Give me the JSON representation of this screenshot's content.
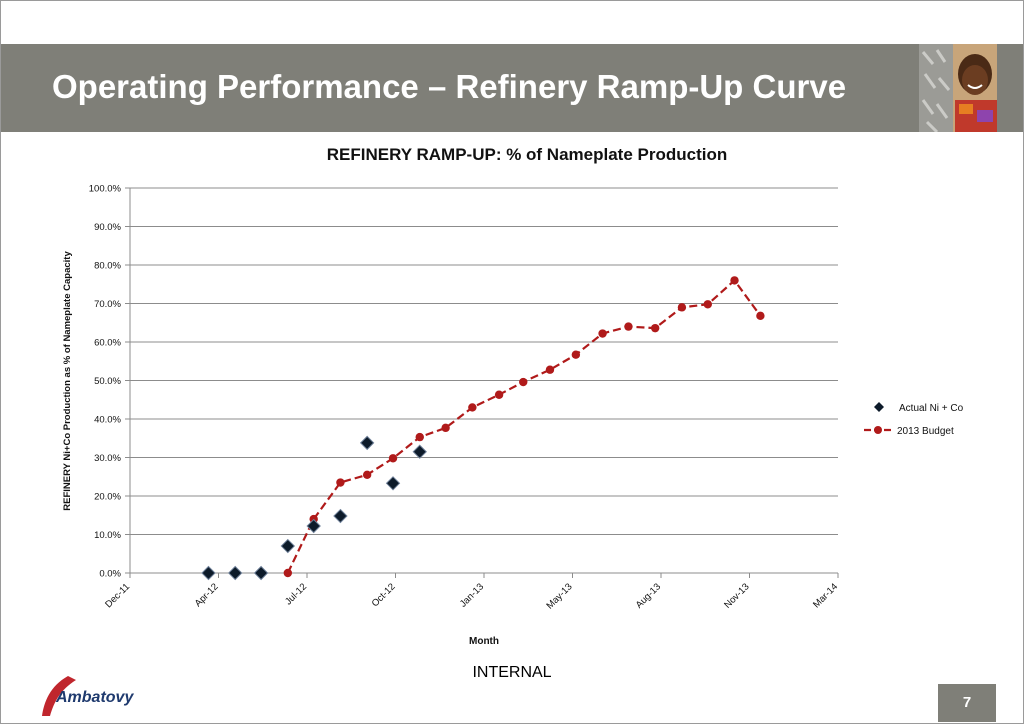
{
  "slide": {
    "title": "Operating Performance – Refinery Ramp-Up Curve",
    "footer_label": "INTERNAL",
    "page_number": "7",
    "logo_text": "Ambatovy",
    "colors": {
      "header_bar": "#7f7f78",
      "actual_marker": "#0d1b2a",
      "budget_line": "#b01a1a"
    }
  },
  "chart_data": {
    "type": "scatter",
    "title": "REFINERY RAMP-UP: % of Nameplate Production",
    "xlabel": "Month",
    "ylabel": "REFINERY Ni+Co Production as % of Nameplate Capacity",
    "x_ticks": [
      "Dec-11",
      "Apr-12",
      "Jul-12",
      "Oct-12",
      "Jan-13",
      "May-13",
      "Aug-13",
      "Nov-13",
      "Mar-14"
    ],
    "x_range": [
      "2011-12-01",
      "2014-03-01"
    ],
    "ylim": [
      0,
      100
    ],
    "y_ticks": [
      "0.0%",
      "10.0%",
      "20.0%",
      "30.0%",
      "40.0%",
      "50.0%",
      "60.0%",
      "70.0%",
      "80.0%",
      "90.0%",
      "100.0%"
    ],
    "grid": true,
    "legend_position": "right",
    "series": [
      {
        "name": "Actual Ni + Co",
        "style": "markers-diamond",
        "x": [
          "2012-03-01",
          "2012-04-01",
          "2012-05-01",
          "2012-06-01",
          "2012-07-01",
          "2012-08-01",
          "2012-09-01",
          "2012-10-01",
          "2012-11-01"
        ],
        "values": [
          0.0,
          0.0,
          0.0,
          7.0,
          12.2,
          14.8,
          33.8,
          23.3,
          31.5
        ]
      },
      {
        "name": "2013 Budget",
        "style": "dashed-line-circles",
        "x": [
          "2012-06-01",
          "2012-07-01",
          "2012-08-01",
          "2012-09-01",
          "2012-10-01",
          "2012-11-01",
          "2012-12-01",
          "2013-01-01",
          "2013-02-01",
          "2013-03-01",
          "2013-04-01",
          "2013-05-01",
          "2013-06-01",
          "2013-07-01",
          "2013-08-01",
          "2013-09-01",
          "2013-10-01",
          "2013-11-01",
          "2013-12-01"
        ],
        "values": [
          0.0,
          14.0,
          23.5,
          25.5,
          29.8,
          35.3,
          37.7,
          43.0,
          46.3,
          49.6,
          52.8,
          56.7,
          62.2,
          64.0,
          63.6,
          69.0,
          69.8,
          76.0,
          66.8
        ]
      }
    ]
  }
}
